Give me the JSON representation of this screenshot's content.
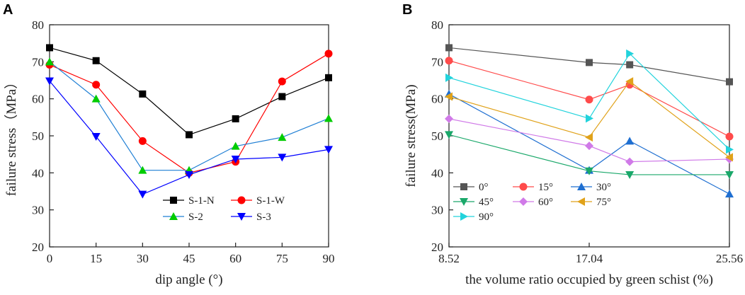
{
  "chart_data": [
    {
      "panel": "A",
      "type": "line",
      "xlabel": "dip angle (°)",
      "ylabel": "failure stress（MPa）",
      "x": [
        0,
        15,
        30,
        45,
        60,
        75,
        90
      ],
      "x_ticks": [
        "0",
        "15",
        "30",
        "45",
        "60",
        "75",
        "90"
      ],
      "xlim": [
        0,
        90
      ],
      "ylim": [
        20,
        80
      ],
      "y_ticks": [
        "20",
        "30",
        "40",
        "50",
        "60",
        "70",
        "80"
      ],
      "grid": false,
      "legend_position": "bottom-right",
      "series": [
        {
          "name": "S-1-N",
          "color": "#000000",
          "marker": "square",
          "values": [
            73.8,
            70.3,
            61.3,
            50.3,
            54.6,
            60.6,
            65.7
          ]
        },
        {
          "name": "S-1-W",
          "color": "#ff0000",
          "marker": "circle",
          "values": [
            69.2,
            63.8,
            48.6,
            40.0,
            43.0,
            64.7,
            72.2
          ]
        },
        {
          "name": "S-2",
          "color": "#00cc00",
          "marker": "triangle",
          "values": [
            70.0,
            60.0,
            40.7,
            40.7,
            47.2,
            49.6,
            54.7
          ]
        },
        {
          "name": "S-3",
          "color": "#0000ff",
          "marker": "triangle-down",
          "values": [
            64.8,
            49.8,
            34.2,
            39.5,
            43.7,
            44.2,
            46.3
          ]
        }
      ],
      "series_extra_colors": {
        "S-2": "#1f7fd4"
      }
    },
    {
      "panel": "B",
      "type": "line",
      "xlabel": "the volume ratio occupied by green schist (%)",
      "ylabel": "failure stress(MPa)",
      "x": [
        8.52,
        17.04,
        19.5,
        25.56
      ],
      "x_ticks": [
        "8.52",
        "17.04",
        "25.56"
      ],
      "x_tick_values": [
        8.52,
        17.04,
        25.56
      ],
      "xlim": [
        8.52,
        25.56
      ],
      "ylim": [
        20,
        80
      ],
      "y_ticks": [
        "20",
        "30",
        "40",
        "50",
        "60",
        "70",
        "80"
      ],
      "grid": false,
      "legend_position": "bottom-left",
      "series": [
        {
          "name": "0°",
          "color": "#555555",
          "marker": "square",
          "values": [
            73.8,
            69.8,
            69.2,
            64.6
          ]
        },
        {
          "name": "15°",
          "color": "#ff4b4b",
          "marker": "circle",
          "values": [
            70.3,
            59.8,
            63.8,
            49.8
          ]
        },
        {
          "name": "30°",
          "color": "#1f6fd1",
          "marker": "triangle",
          "values": [
            61.3,
            40.7,
            48.6,
            34.3
          ]
        },
        {
          "name": "45°",
          "color": "#1aa86a",
          "marker": "triangle-down",
          "values": [
            50.3,
            40.5,
            39.5,
            39.5
          ]
        },
        {
          "name": "60°",
          "color": "#d07ae8",
          "marker": "diamond",
          "values": [
            54.6,
            47.3,
            43.0,
            43.7
          ]
        },
        {
          "name": "75°",
          "color": "#e0a21a",
          "marker": "triangle-left",
          "values": [
            60.6,
            49.6,
            64.7,
            44.2
          ]
        },
        {
          "name": "90°",
          "color": "#22d3dc",
          "marker": "triangle-right",
          "values": [
            65.7,
            54.7,
            72.2,
            46.3
          ]
        }
      ]
    }
  ]
}
